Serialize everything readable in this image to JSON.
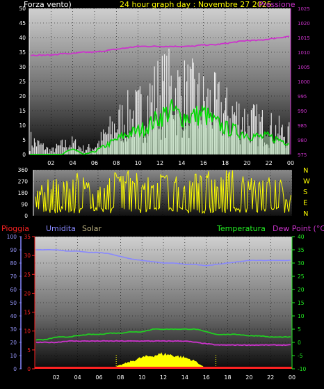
{
  "header": {
    "left_title": "Forza vento)",
    "center_title": "24 hour graph day : Novembre 27 2025",
    "right_title": "Pressione"
  },
  "colors": {
    "wind_gust": "#ffffff",
    "wind_avg": "#00dd00",
    "pressure": "#cc33cc",
    "direction": "#ffff00",
    "humidity": "#8888ff",
    "temperature": "#22cc22",
    "dewpoint": "#cc33cc",
    "rain": "#ff2222",
    "solar": "#ffff00",
    "title": "#ffff00"
  },
  "direction_labels": [
    "N",
    "W",
    "S",
    "E",
    "N"
  ],
  "bottom_header": {
    "rain_label": "Pioggia",
    "humidity_label": "Umidita",
    "solar_label": "Solar",
    "temp_label": "Temperatura",
    "dew_label": "Dew Point (°C)"
  },
  "chart_data": [
    {
      "type": "line",
      "title": "24 hour graph day : Novembre 27 2025",
      "xlabel": "",
      "x_ticks": [
        "02",
        "04",
        "06",
        "08",
        "10",
        "12",
        "14",
        "16",
        "18",
        "20",
        "22",
        "00"
      ],
      "y_left_ticks": [
        "0",
        "5",
        "10",
        "15",
        "20",
        "25",
        "30",
        "35",
        "40",
        "45",
        "50"
      ],
      "y_left_lim": [
        0,
        50
      ],
      "y_right_ticks": [
        "975",
        "980",
        "985",
        "990",
        "995",
        "1000",
        "1005",
        "1010",
        "1015",
        "1020",
        "1025"
      ],
      "y_right_lim": [
        975,
        1025
      ],
      "series": [
        {
          "axis": "right",
          "color": "#cc33cc",
          "x": [
            0,
            1,
            2,
            3,
            4,
            5,
            6,
            7,
            8,
            9,
            10,
            11,
            12,
            13,
            14,
            15,
            16,
            17,
            18,
            19,
            20,
            21,
            22,
            23,
            24
          ],
          "values": [
            1009,
            1009,
            1009,
            1009.5,
            1009.5,
            1010,
            1010,
            1010.5,
            1011,
            1011.5,
            1012,
            1012,
            1012,
            1012,
            1012,
            1012,
            1012.5,
            1012.5,
            1013,
            1013.5,
            1014,
            1014,
            1014.5,
            1015,
            1015.5
          ]
        },
        {
          "axis": "left",
          "color": "#ffffff",
          "x": [
            0,
            1,
            2,
            3,
            4,
            5,
            6,
            7,
            8,
            9,
            10,
            11,
            12,
            13,
            14,
            15,
            16,
            17,
            18,
            19,
            20,
            21,
            22,
            23,
            24
          ],
          "values": [
            8,
            5,
            2,
            5,
            6,
            3,
            4,
            10,
            16,
            20,
            22,
            28,
            33,
            34,
            32,
            30,
            27,
            26,
            22,
            21,
            18,
            16,
            14,
            12,
            10
          ]
        },
        {
          "axis": "left",
          "color": "#00dd00",
          "x": [
            0,
            1,
            2,
            3,
            4,
            5,
            6,
            7,
            8,
            9,
            10,
            11,
            12,
            13,
            14,
            15,
            16,
            17,
            18,
            19,
            20,
            21,
            22,
            23,
            24
          ],
          "values": [
            0,
            0,
            0,
            0,
            2,
            0,
            1,
            3,
            5,
            7,
            8,
            10,
            13,
            15,
            13,
            13,
            14,
            11,
            9,
            8,
            7,
            6,
            6,
            5,
            4
          ]
        }
      ]
    },
    {
      "type": "bar",
      "title": "",
      "y_ticks": [
        "0",
        "90",
        "180",
        "270",
        "360"
      ],
      "ylim": [
        0,
        360
      ],
      "series": [
        {
          "color": "#ffff00",
          "x": [
            0,
            1,
            2,
            3,
            4,
            5,
            6,
            7,
            8,
            9,
            10,
            11,
            12,
            13,
            14,
            15,
            16,
            17,
            18,
            19,
            20,
            21,
            22,
            23,
            24
          ],
          "values": [
            90,
            200,
            260,
            180,
            300,
            230,
            120,
            260,
            300,
            280,
            240,
            220,
            280,
            300,
            200,
            260,
            280,
            240,
            300,
            260,
            220,
            180,
            260,
            200,
            80
          ]
        }
      ]
    },
    {
      "type": "line",
      "title": "",
      "y_left_ticks": [
        "0",
        "5",
        "10",
        "15",
        "20",
        "25",
        "30",
        "35"
      ],
      "y_left_lim": [
        0,
        35
      ],
      "y_far_left_ticks": [
        "0",
        "10",
        "20",
        "30",
        "40",
        "50",
        "60",
        "70",
        "80",
        "90",
        "100"
      ],
      "y_far_left_lim": [
        0,
        100
      ],
      "y_right_ticks": [
        "-10",
        "-5",
        "0",
        "5",
        "10",
        "15",
        "20",
        "25",
        "30",
        "35",
        "40"
      ],
      "y_right_lim": [
        -10,
        40
      ],
      "series": [
        {
          "name": "Umidita",
          "axis": "far_left",
          "color": "#8888ff",
          "x": [
            0,
            1,
            2,
            3,
            4,
            5,
            6,
            7,
            8,
            9,
            10,
            11,
            12,
            13,
            14,
            15,
            16,
            17,
            18,
            19,
            20,
            21,
            22,
            23,
            24
          ],
          "values": [
            90,
            90,
            90,
            89,
            89,
            88,
            88,
            87,
            85,
            83,
            82,
            81,
            80,
            80,
            79,
            79,
            78,
            79,
            80,
            81,
            82,
            82,
            82,
            82,
            82
          ]
        },
        {
          "name": "Temperatura",
          "axis": "right",
          "color": "#22cc22",
          "x": [
            0,
            1,
            2,
            3,
            4,
            5,
            6,
            7,
            8,
            9,
            10,
            11,
            12,
            13,
            14,
            15,
            16,
            17,
            18,
            19,
            20,
            21,
            22,
            23,
            24
          ],
          "values": [
            1,
            1,
            2,
            2,
            2.5,
            3,
            3,
            3.5,
            3.5,
            4,
            4,
            5,
            5,
            5,
            5,
            5,
            4,
            3,
            3,
            3,
            2.5,
            2.5,
            2,
            2,
            2
          ]
        },
        {
          "name": "Dew Point",
          "axis": "right",
          "color": "#cc33cc",
          "x": [
            0,
            1,
            2,
            3,
            4,
            5,
            6,
            7,
            8,
            9,
            10,
            11,
            12,
            13,
            14,
            15,
            16,
            17,
            18,
            19,
            20,
            21,
            22,
            23,
            24
          ],
          "values": [
            0,
            0,
            0,
            0.5,
            0.5,
            0.5,
            0.5,
            0.5,
            0.5,
            0.5,
            0.5,
            0.5,
            0.5,
            0.5,
            0.5,
            0,
            -0.5,
            -1,
            -1,
            -1,
            -1,
            -1,
            -1,
            -1,
            -1
          ]
        },
        {
          "name": "Solar",
          "axis": "left",
          "color": "#ffff00",
          "x": [
            0,
            7,
            8,
            9,
            10,
            11,
            12,
            13,
            14,
            15,
            16,
            24
          ],
          "values": [
            0,
            0,
            1,
            2,
            3,
            3.5,
            4,
            3.5,
            3,
            2,
            0,
            0
          ]
        },
        {
          "name": "Pioggia",
          "axis": "left",
          "color": "#ff2222",
          "x": [
            0,
            24
          ],
          "values": [
            0,
            0
          ]
        }
      ]
    }
  ]
}
